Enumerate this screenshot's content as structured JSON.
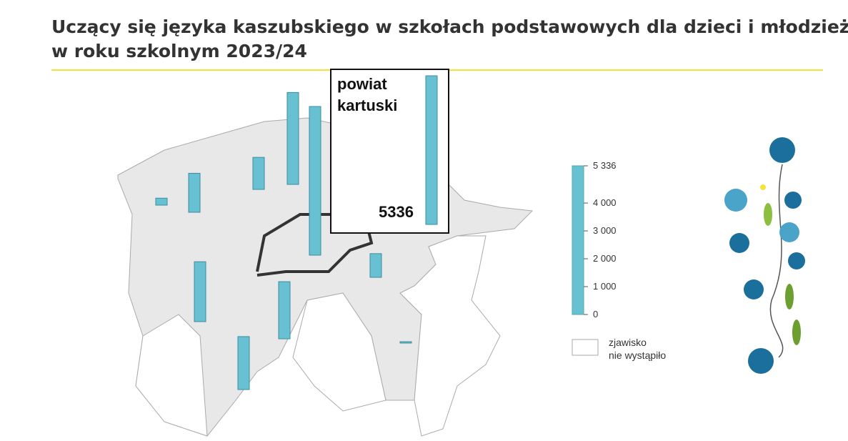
{
  "title": [
    "Uczący się języka kaszubskiego w szkołach podstawowych dla dzieci i młodzieży",
    "w roku szkolnym 2023/24"
  ],
  "callout": {
    "label": [
      "powiat",
      "kartuski"
    ],
    "value": 5336
  },
  "scale": {
    "ylim": [
      0,
      5336
    ],
    "yticks": [
      {
        "value": 5336,
        "label": "5 336"
      },
      {
        "value": 4000,
        "label": "4 000"
      },
      {
        "value": 3000,
        "label": "3 000"
      },
      {
        "value": 2000,
        "label": "2 000"
      },
      {
        "value": 1000,
        "label": "1 000"
      },
      0
    ],
    "color": "#67c1d3"
  },
  "map_bars": {
    "values": [
      250,
      1400,
      1150,
      3300,
      2150,
      2050,
      1900,
      850,
      50
    ]
  },
  "legend_note": [
    "zjawisko",
    "nie wystąpiło"
  ]
}
